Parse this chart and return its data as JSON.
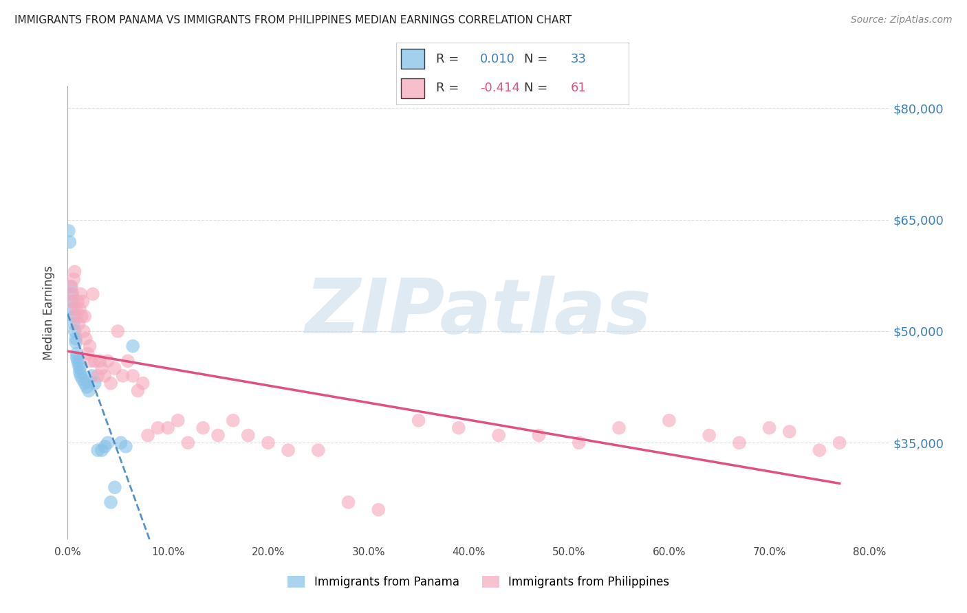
{
  "title": "IMMIGRANTS FROM PANAMA VS IMMIGRANTS FROM PHILIPPINES MEDIAN EARNINGS CORRELATION CHART",
  "source": "Source: ZipAtlas.com",
  "ylabel": "Median Earnings",
  "y_ticks": [
    35000,
    50000,
    65000,
    80000
  ],
  "y_tick_labels": [
    "$35,000",
    "$50,000",
    "$65,000",
    "$80,000"
  ],
  "x_ticks": [
    0.0,
    0.1,
    0.2,
    0.3,
    0.4,
    0.5,
    0.6,
    0.7,
    0.8
  ],
  "x_tick_labels": [
    "0.0%",
    "10.0%",
    "20.0%",
    "30.0%",
    "40.0%",
    "50.0%",
    "60.0%",
    "70.0%",
    "80.0%"
  ],
  "xlim": [
    0.0,
    0.82
  ],
  "ylim": [
    22000,
    83000
  ],
  "panama_R": 0.01,
  "panama_N": 33,
  "philippines_R": -0.414,
  "philippines_N": 61,
  "panama_color": "#85c1e8",
  "philippines_color": "#f5a8bc",
  "trend_panama_color": "#3a7fbf",
  "trend_philippines_color": "#e05080",
  "background_color": "#ffffff",
  "watermark": "ZIPatlas",
  "panama_x": [
    0.001,
    0.002,
    0.003,
    0.004,
    0.005,
    0.005,
    0.006,
    0.006,
    0.007,
    0.008,
    0.008,
    0.009,
    0.009,
    0.01,
    0.011,
    0.012,
    0.012,
    0.013,
    0.015,
    0.017,
    0.019,
    0.021,
    0.024,
    0.027,
    0.03,
    0.034,
    0.037,
    0.04,
    0.043,
    0.047,
    0.053,
    0.058,
    0.065
  ],
  "panama_y": [
    63500,
    62000,
    56000,
    55000,
    54000,
    53000,
    52000,
    51000,
    50000,
    49000,
    48500,
    47000,
    46500,
    46000,
    45500,
    45000,
    44500,
    44000,
    43500,
    43000,
    42500,
    42000,
    44000,
    43000,
    34000,
    34000,
    34500,
    35000,
    27000,
    29000,
    35000,
    34500,
    48000
  ],
  "philippines_x": [
    0.003,
    0.004,
    0.005,
    0.006,
    0.007,
    0.008,
    0.009,
    0.01,
    0.011,
    0.012,
    0.013,
    0.014,
    0.015,
    0.016,
    0.017,
    0.018,
    0.02,
    0.022,
    0.023,
    0.025,
    0.027,
    0.03,
    0.032,
    0.034,
    0.037,
    0.04,
    0.043,
    0.047,
    0.05,
    0.055,
    0.06,
    0.065,
    0.07,
    0.075,
    0.08,
    0.09,
    0.1,
    0.11,
    0.12,
    0.135,
    0.15,
    0.165,
    0.18,
    0.2,
    0.22,
    0.25,
    0.28,
    0.31,
    0.35,
    0.39,
    0.43,
    0.47,
    0.51,
    0.55,
    0.6,
    0.64,
    0.67,
    0.7,
    0.72,
    0.75,
    0.77
  ],
  "philippines_y": [
    54000,
    56000,
    55000,
    57000,
    58000,
    53000,
    52000,
    54000,
    51000,
    53000,
    55000,
    52000,
    54000,
    50000,
    52000,
    49000,
    47000,
    48000,
    46000,
    55000,
    46000,
    44000,
    46000,
    45000,
    44000,
    46000,
    43000,
    45000,
    50000,
    44000,
    46000,
    44000,
    42000,
    43000,
    36000,
    37000,
    37000,
    38000,
    35000,
    37000,
    36000,
    38000,
    36000,
    35000,
    34000,
    34000,
    27000,
    26000,
    38000,
    37000,
    36000,
    36000,
    35000,
    37000,
    38000,
    36000,
    35000,
    37000,
    36500,
    34000,
    35000
  ]
}
